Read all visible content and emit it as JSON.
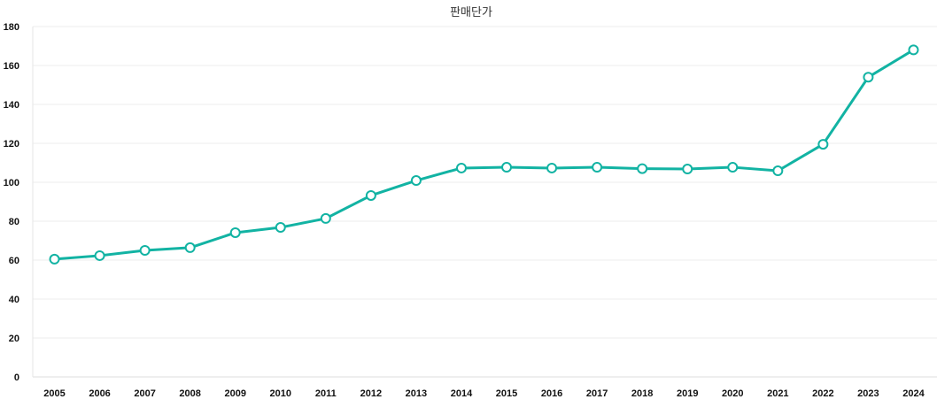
{
  "chart_data": {
    "type": "line",
    "title": "판매단가",
    "categories": [
      "2005",
      "2006",
      "2007",
      "2008",
      "2009",
      "2010",
      "2011",
      "2012",
      "2013",
      "2014",
      "2015",
      "2016",
      "2017",
      "2018",
      "2019",
      "2020",
      "2021",
      "2022",
      "2023",
      "2024"
    ],
    "series": [
      {
        "values": [
          60.5,
          62.3,
          65,
          66.4,
          74.1,
          76.8,
          81.4,
          93.2,
          100.9,
          107.3,
          107.7,
          107.3,
          107.7,
          107,
          106.8,
          107.7,
          105.9,
          119.5,
          154,
          168
        ]
      }
    ],
    "ylim": [
      0,
      180
    ],
    "yticks": [
      "0",
      "20",
      "40",
      "60",
      "80",
      "100",
      "120",
      "140",
      "160",
      "180"
    ],
    "grid": true,
    "legend": "none",
    "colors": {
      "line": "#12b3a3",
      "marker_fill": "#ffffff",
      "grid": "#ececec"
    }
  }
}
